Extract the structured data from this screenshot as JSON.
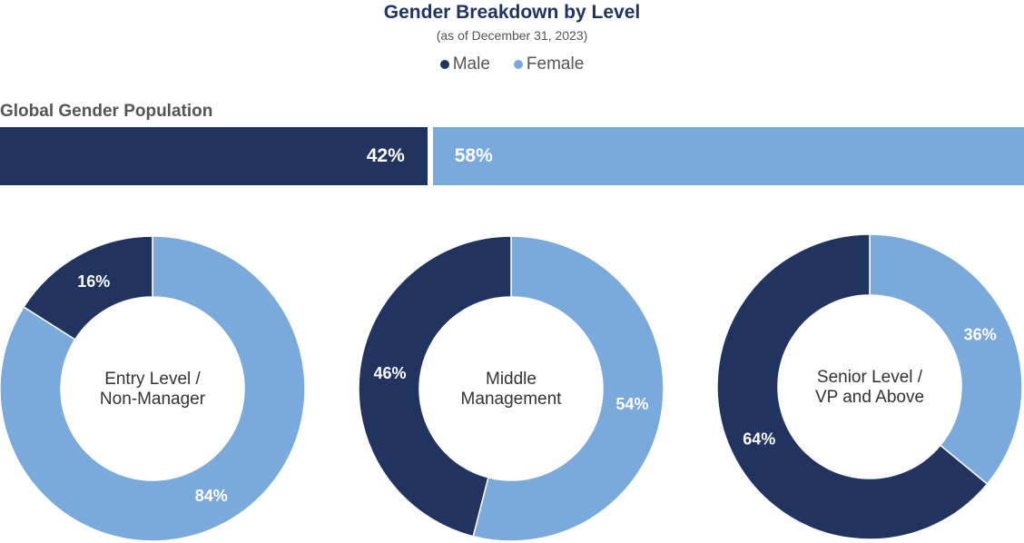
{
  "colors": {
    "male": "#21335f",
    "female": "#79aadb"
  },
  "chart_data": [
    {
      "type": "bar",
      "title": "Gender Breakdown by Level",
      "subtitle": "(as of December 31, 2023)",
      "legend": [
        "Male",
        "Female"
      ],
      "label": "Global Gender Population",
      "series": [
        {
          "name": "Male",
          "value": 42,
          "label": "42%"
        },
        {
          "name": "Female",
          "value": 58,
          "label": "58%"
        }
      ]
    },
    {
      "type": "pie",
      "label_lines": [
        "Entry Level /",
        "Non-Manager"
      ],
      "slices": [
        {
          "name": "Male",
          "value": 16,
          "label": "16%"
        },
        {
          "name": "Female",
          "value": 84,
          "label": "84%"
        }
      ]
    },
    {
      "type": "pie",
      "label_lines": [
        "Middle",
        "Management"
      ],
      "slices": [
        {
          "name": "Male",
          "value": 46,
          "label": "46%"
        },
        {
          "name": "Female",
          "value": 54,
          "label": "54%"
        }
      ]
    },
    {
      "type": "pie",
      "label_lines": [
        "Senior Level /",
        "VP and Above"
      ],
      "slices": [
        {
          "name": "Male",
          "value": 64,
          "label": "64%"
        },
        {
          "name": "Female",
          "value": 36,
          "label": "36%"
        }
      ]
    }
  ]
}
